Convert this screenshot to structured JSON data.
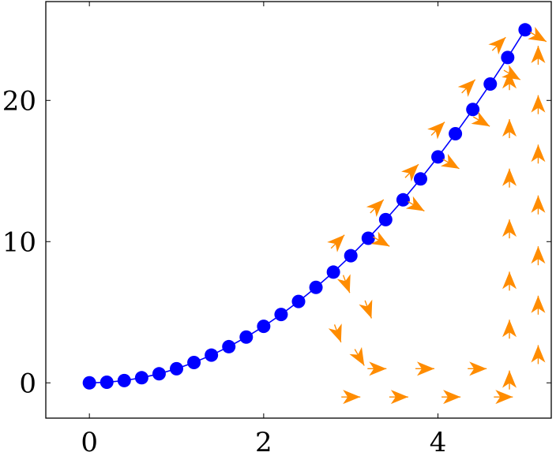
{
  "chart_data": {
    "type": "line",
    "title": "",
    "xlabel": "",
    "ylabel": "",
    "xlim": [
      -0.5,
      5.3
    ],
    "ylim": [
      -2.5,
      27.0
    ],
    "x_ticks": [
      0,
      2,
      4
    ],
    "y_ticks": [
      0,
      10,
      20
    ],
    "grid": false,
    "legend": "none",
    "series": [
      {
        "type": "line",
        "color": "#0000ff",
        "marker": "circle",
        "points": [
          [
            0.0,
            0.0
          ],
          [
            0.2,
            0.04
          ],
          [
            0.4,
            0.16
          ],
          [
            0.6,
            0.36
          ],
          [
            0.8,
            0.64
          ],
          [
            1.0,
            1.0
          ],
          [
            1.2,
            1.44
          ],
          [
            1.4,
            1.96
          ],
          [
            1.6,
            2.56
          ],
          [
            1.8,
            3.24
          ],
          [
            2.0,
            4.0
          ],
          [
            2.2,
            4.84
          ],
          [
            2.4,
            5.76
          ],
          [
            2.6,
            6.76
          ],
          [
            2.8,
            7.84
          ],
          [
            3.0,
            9.0
          ],
          [
            3.2,
            10.24
          ],
          [
            3.4,
            11.56
          ],
          [
            3.6,
            12.96
          ],
          [
            3.8,
            14.44
          ],
          [
            4.0,
            16.0
          ],
          [
            4.2,
            17.64
          ],
          [
            4.4,
            19.36
          ],
          [
            4.6,
            21.16
          ],
          [
            4.8,
            23.04
          ],
          [
            5.0,
            25.0
          ]
        ]
      },
      {
        "type": "quiver",
        "color": "#ff8c00",
        "marker": "arrow",
        "arrows": [
          {
            "x": 2.85,
            "y": 10.0,
            "angle": 45
          },
          {
            "x": 2.95,
            "y": 7.0,
            "angle": 290
          },
          {
            "x": 2.85,
            "y": 3.5,
            "angle": 290
          },
          {
            "x": 3.1,
            "y": 1.8,
            "angle": 300
          },
          {
            "x": 3.2,
            "y": 5.2,
            "angle": 290
          },
          {
            "x": 3.0,
            "y": -1.0,
            "angle": 0
          },
          {
            "x": 3.3,
            "y": 1.0,
            "angle": 0
          },
          {
            "x": 3.55,
            "y": -1.0,
            "angle": 0
          },
          {
            "x": 3.85,
            "y": 1.0,
            "angle": 0
          },
          {
            "x": 4.15,
            "y": -1.0,
            "angle": 0
          },
          {
            "x": 4.45,
            "y": 1.0,
            "angle": 0
          },
          {
            "x": 4.75,
            "y": -1.0,
            "angle": 0
          },
          {
            "x": 3.3,
            "y": 12.5,
            "angle": 45
          },
          {
            "x": 3.35,
            "y": 10.0,
            "angle": 330
          },
          {
            "x": 3.7,
            "y": 15.0,
            "angle": 45
          },
          {
            "x": 3.75,
            "y": 12.5,
            "angle": 330
          },
          {
            "x": 4.0,
            "y": 18.0,
            "angle": 45
          },
          {
            "x": 4.15,
            "y": 15.5,
            "angle": 330
          },
          {
            "x": 4.35,
            "y": 21.0,
            "angle": 45
          },
          {
            "x": 4.5,
            "y": 18.5,
            "angle": 330
          },
          {
            "x": 4.7,
            "y": 24.0,
            "angle": 45
          },
          {
            "x": 4.85,
            "y": 21.8,
            "angle": 330
          },
          {
            "x": 5.15,
            "y": 24.5,
            "angle": 330
          },
          {
            "x": 4.82,
            "y": 0.2,
            "angle": 90
          },
          {
            "x": 4.82,
            "y": 3.8,
            "angle": 90
          },
          {
            "x": 4.82,
            "y": 7.2,
            "angle": 90
          },
          {
            "x": 4.82,
            "y": 10.9,
            "angle": 90
          },
          {
            "x": 4.82,
            "y": 14.5,
            "angle": 90
          },
          {
            "x": 4.82,
            "y": 18.0,
            "angle": 90
          },
          {
            "x": 4.82,
            "y": 21.4,
            "angle": 90
          },
          {
            "x": 5.15,
            "y": 2.0,
            "angle": 90
          },
          {
            "x": 5.15,
            "y": 5.5,
            "angle": 90
          },
          {
            "x": 5.15,
            "y": 9.0,
            "angle": 90
          },
          {
            "x": 5.15,
            "y": 12.6,
            "angle": 90
          },
          {
            "x": 5.15,
            "y": 16.2,
            "angle": 90
          },
          {
            "x": 5.15,
            "y": 19.7,
            "angle": 90
          },
          {
            "x": 5.15,
            "y": 23.2,
            "angle": 90
          }
        ]
      }
    ]
  }
}
